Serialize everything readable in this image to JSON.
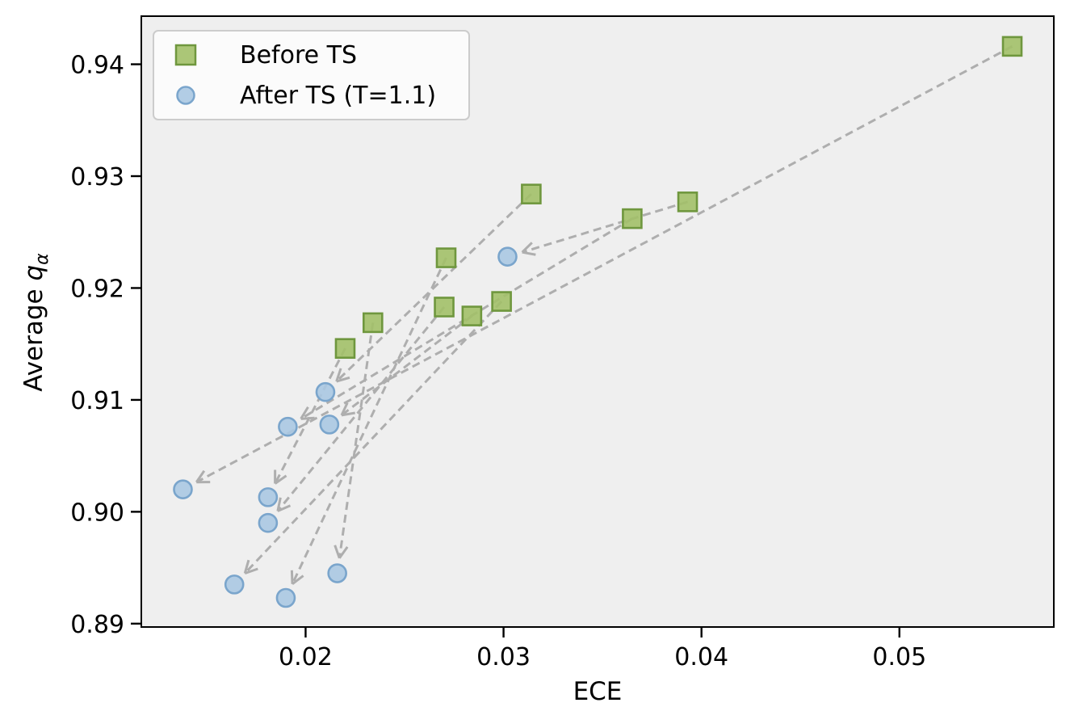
{
  "figure": {
    "kind": "matplotlib-scatter-figure"
  },
  "colors": {
    "figure_bg": "#ffffff",
    "plot_bg": "#efefef",
    "spine": "#000000",
    "text": "#000000",
    "arrow": "#9e9e9e",
    "legend_bg": "#fbfbfb",
    "legend_border": "#cccccc"
  },
  "chart_data": {
    "type": "scatter",
    "title": "",
    "xlabel": "ECE",
    "ylabel": "Average q_α",
    "ylabel_parts": {
      "prefix": "Average ",
      "variable": "q",
      "subscript": "α"
    },
    "xlim": [
      0.0117,
      0.0578
    ],
    "ylim": [
      0.8897,
      0.9443
    ],
    "grid": false,
    "legend_position": "upper-left",
    "x_ticks": [
      0.02,
      0.03,
      0.04,
      0.05
    ],
    "x_tick_labels": [
      "0.02",
      "0.03",
      "0.04",
      "0.05"
    ],
    "y_ticks": [
      0.89,
      0.9,
      0.91,
      0.92,
      0.93,
      0.94
    ],
    "y_tick_labels": [
      "0.89",
      "0.90",
      "0.91",
      "0.92",
      "0.93",
      "0.94"
    ],
    "series": [
      {
        "name": "Before TS",
        "marker": "square",
        "fill": "#a2c068",
        "edge": "#6f973e",
        "points": [
          [
            0.0557,
            0.9416
          ],
          [
            0.0393,
            0.9277
          ],
          [
            0.0365,
            0.9262
          ],
          [
            0.0314,
            0.9284
          ],
          [
            0.0271,
            0.9227
          ],
          [
            0.0299,
            0.9188
          ],
          [
            0.0284,
            0.9175
          ],
          [
            0.027,
            0.9183
          ],
          [
            0.0234,
            0.9169
          ],
          [
            0.022,
            0.9146
          ]
        ]
      },
      {
        "name": "After TS (T=1.1)",
        "marker": "circle",
        "fill": "#aac8e2",
        "edge": "#7aa5cc",
        "points": [
          [
            0.0302,
            0.9228
          ],
          [
            0.021,
            0.9107
          ],
          [
            0.0212,
            0.9078
          ],
          [
            0.0191,
            0.9076
          ],
          [
            0.0138,
            0.902
          ],
          [
            0.0181,
            0.9013
          ],
          [
            0.0181,
            0.899
          ],
          [
            0.0164,
            0.8935
          ],
          [
            0.0216,
            0.8945
          ],
          [
            0.019,
            0.8923
          ]
        ]
      }
    ],
    "arrows_note": "dashed gray arrows point from a Before-TS point (index in series 0) to an After-TS point (index in series 1)",
    "arrows": [
      [
        0,
        4
      ],
      [
        1,
        0
      ],
      [
        2,
        3
      ],
      [
        3,
        1
      ],
      [
        4,
        9
      ],
      [
        5,
        7
      ],
      [
        6,
        2
      ],
      [
        7,
        6
      ],
      [
        8,
        8
      ],
      [
        9,
        5
      ]
    ]
  }
}
